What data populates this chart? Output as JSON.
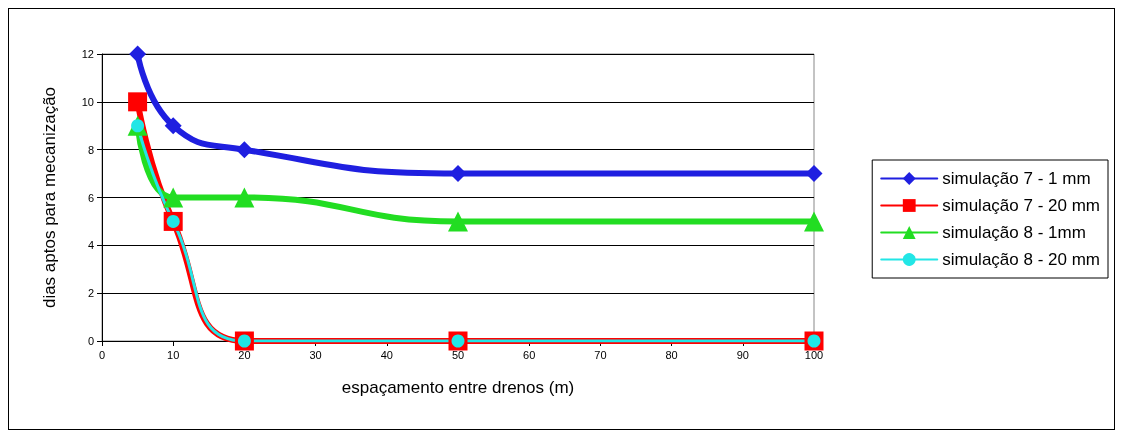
{
  "chart_data": {
    "type": "line",
    "xlabel": "espaçamento entre drenos (m)",
    "ylabel": "dias aptos para mecanização",
    "x": [
      5,
      10,
      20,
      50,
      100
    ],
    "series": [
      {
        "name": "simulação 7 - 1 mm",
        "color": "#1f1fe0",
        "marker": "diamond",
        "values": [
          12,
          9,
          8,
          7,
          7
        ]
      },
      {
        "name": "simulação 7 - 20 mm",
        "color": "#ff0000",
        "marker": "square",
        "values": [
          10,
          5,
          0,
          0,
          0
        ]
      },
      {
        "name": "simulação 8 - 1mm",
        "color": "#22dd22",
        "marker": "triangle",
        "values": [
          9,
          6,
          6,
          5,
          5
        ]
      },
      {
        "name": "simulação 8 - 20 mm",
        "color": "#22e6e6",
        "marker": "circle",
        "values": [
          9,
          5,
          0,
          0,
          0
        ]
      }
    ],
    "xlim": [
      0,
      100
    ],
    "xticks": [
      0,
      10,
      20,
      30,
      40,
      50,
      60,
      70,
      80,
      90,
      100
    ],
    "ylim": [
      0,
      12
    ],
    "yticks": [
      0,
      2,
      4,
      6,
      8,
      10,
      12
    ],
    "grid": "y",
    "legend": "right"
  }
}
